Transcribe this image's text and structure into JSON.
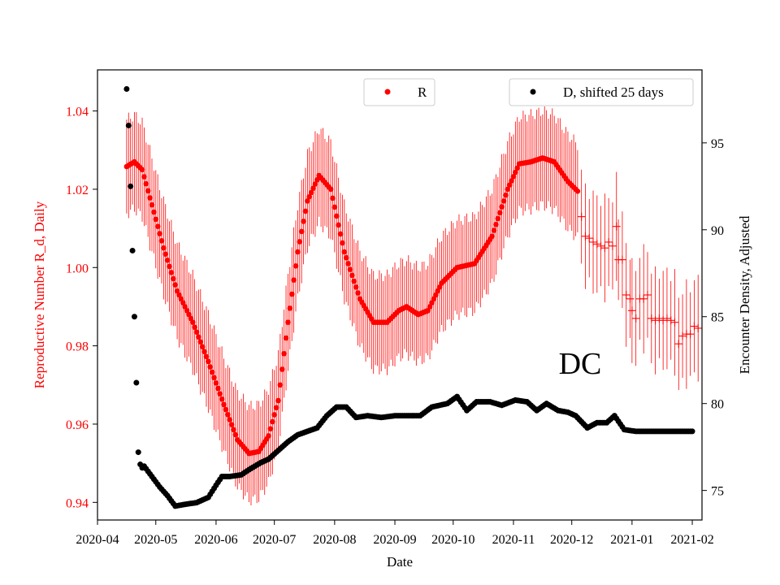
{
  "chart_data": {
    "type": "scatter",
    "title": "",
    "annotation": "DC",
    "xlabel": "Date",
    "ylabel_left": "Reproductive Number R_d, Daily",
    "ylabel_right": "Encounter Density, Adjusted",
    "xlim": [
      "2020-04-01",
      "2021-02-06"
    ],
    "ylim_left": [
      0.9355,
      1.0505
    ],
    "ylim_right": [
      73.3,
      99.2
    ],
    "x_ticks": [
      "2020-04",
      "2020-05",
      "2020-06",
      "2020-07",
      "2020-08",
      "2020-09",
      "2020-10",
      "2020-11",
      "2020-12",
      "2021-01",
      "2021-02"
    ],
    "y_ticks_left": [
      "0.94",
      "0.96",
      "0.98",
      "1.00",
      "1.02",
      "1.04"
    ],
    "y_ticks_right": [
      "75",
      "80",
      "85",
      "90",
      "95"
    ],
    "colors": {
      "R": "#ff0000",
      "D": "#000000",
      "left_axis": "#ff0000",
      "right_axis": "#000000"
    },
    "legend": [
      {
        "label": "R",
        "position": "top-center",
        "color": "#ff0000"
      },
      {
        "label": "D, shifted 25 days",
        "position": "top-right",
        "color": "#000000"
      }
    ],
    "series": [
      {
        "name": "R",
        "axis": "left",
        "style": "dots-with-errorbars",
        "color": "#ff0000",
        "error_halfwidth": 0.012,
        "keyframes": [
          [
            "2020-04-16",
            1.0258
          ],
          [
            "2020-04-20",
            1.027
          ],
          [
            "2020-04-24",
            1.025
          ],
          [
            "2020-04-29",
            1.016
          ],
          [
            "2020-05-05",
            1.005
          ],
          [
            "2020-05-12",
            0.994
          ],
          [
            "2020-05-20",
            0.986
          ],
          [
            "2020-05-28",
            0.976
          ],
          [
            "2020-06-05",
            0.965
          ],
          [
            "2020-06-12",
            0.956
          ],
          [
            "2020-06-18",
            0.9525
          ],
          [
            "2020-06-23",
            0.953
          ],
          [
            "2020-06-28",
            0.957
          ],
          [
            "2020-07-03",
            0.966
          ],
          [
            "2020-07-08",
            0.986
          ],
          [
            "2020-07-13",
            1.004
          ],
          [
            "2020-07-18",
            1.017
          ],
          [
            "2020-07-24",
            1.0235
          ],
          [
            "2020-07-30",
            1.02
          ],
          [
            "2020-08-06",
            1.004
          ],
          [
            "2020-08-14",
            0.992
          ],
          [
            "2020-08-21",
            0.986
          ],
          [
            "2020-08-28",
            0.986
          ],
          [
            "2020-09-03",
            0.989
          ],
          [
            "2020-09-07",
            0.99
          ],
          [
            "2020-09-13",
            0.988
          ],
          [
            "2020-09-18",
            0.989
          ],
          [
            "2020-09-25",
            0.996
          ],
          [
            "2020-10-03",
            1.0
          ],
          [
            "2020-10-12",
            1.001
          ],
          [
            "2020-10-21",
            1.008
          ],
          [
            "2020-10-29",
            1.02
          ],
          [
            "2020-11-04",
            1.0265
          ],
          [
            "2020-11-10",
            1.027
          ],
          [
            "2020-11-16",
            1.028
          ],
          [
            "2020-11-22",
            1.027
          ],
          [
            "2020-11-29",
            1.022
          ],
          [
            "2020-12-04",
            1.0195
          ]
        ]
      },
      {
        "name": "R (crosses)",
        "axis": "left",
        "style": "plus-markers-with-errorbars",
        "color": "#ff0000",
        "points": [
          [
            "2020-12-06",
            1.013
          ],
          [
            "2020-12-08",
            1.008
          ],
          [
            "2020-12-10",
            1.0075
          ],
          [
            "2020-12-12",
            1.0065
          ],
          [
            "2020-12-14",
            1.006
          ],
          [
            "2020-12-16",
            1.0055
          ],
          [
            "2020-12-18",
            1.005
          ],
          [
            "2020-12-20",
            1.0065
          ],
          [
            "2020-12-22",
            1.0055
          ],
          [
            "2020-12-24",
            1.0105
          ],
          [
            "2020-12-25",
            1.002
          ],
          [
            "2020-12-27",
            1.002
          ],
          [
            "2020-12-29",
            0.993
          ],
          [
            "2020-12-31",
            0.992
          ],
          [
            "2021-01-01",
            0.989
          ],
          [
            "2021-01-03",
            0.987
          ],
          [
            "2021-01-05",
            0.992
          ],
          [
            "2021-01-07",
            0.992
          ],
          [
            "2021-01-09",
            0.993
          ],
          [
            "2021-01-11",
            0.987
          ],
          [
            "2021-01-13",
            0.9865
          ],
          [
            "2021-01-15",
            0.987
          ],
          [
            "2021-01-17",
            0.9865
          ],
          [
            "2021-01-19",
            0.987
          ],
          [
            "2021-01-21",
            0.9865
          ],
          [
            "2021-01-23",
            0.986
          ],
          [
            "2021-01-25",
            0.9805
          ],
          [
            "2021-01-27",
            0.9825
          ],
          [
            "2021-01-29",
            0.983
          ],
          [
            "2021-01-31",
            0.983
          ],
          [
            "2021-02-02",
            0.985
          ],
          [
            "2021-02-04",
            0.9845
          ]
        ]
      },
      {
        "name": "D, shifted 25 days",
        "axis": "right",
        "style": "dots",
        "color": "#000000",
        "head_points": [
          [
            "2020-04-16",
            98.1
          ],
          [
            "2020-04-17",
            96.0
          ],
          [
            "2020-04-18",
            92.5
          ],
          [
            "2020-04-19",
            88.8
          ],
          [
            "2020-04-20",
            85.0
          ],
          [
            "2020-04-21",
            81.2
          ],
          [
            "2020-04-22",
            77.2
          ],
          [
            "2020-04-23",
            76.5
          ],
          [
            "2020-04-24",
            76.3
          ]
        ],
        "keyframes": [
          [
            "2020-04-25",
            76.4
          ],
          [
            "2020-04-29",
            75.8
          ],
          [
            "2020-05-03",
            75.2
          ],
          [
            "2020-05-07",
            74.7
          ],
          [
            "2020-05-11",
            74.1
          ],
          [
            "2020-05-16",
            74.2
          ],
          [
            "2020-05-22",
            74.3
          ],
          [
            "2020-05-28",
            74.6
          ],
          [
            "2020-06-01",
            75.3
          ],
          [
            "2020-06-04",
            75.8
          ],
          [
            "2020-06-08",
            75.8
          ],
          [
            "2020-06-14",
            75.9
          ],
          [
            "2020-06-18",
            76.2
          ],
          [
            "2020-06-24",
            76.6
          ],
          [
            "2020-06-28",
            76.8
          ],
          [
            "2020-07-03",
            77.3
          ],
          [
            "2020-07-08",
            77.8
          ],
          [
            "2020-07-13",
            78.2
          ],
          [
            "2020-07-18",
            78.4
          ],
          [
            "2020-07-23",
            78.6
          ],
          [
            "2020-07-28",
            79.3
          ],
          [
            "2020-08-02",
            79.8
          ],
          [
            "2020-08-07",
            79.8
          ],
          [
            "2020-08-12",
            79.2
          ],
          [
            "2020-08-18",
            79.3
          ],
          [
            "2020-08-25",
            79.2
          ],
          [
            "2020-09-01",
            79.3
          ],
          [
            "2020-09-08",
            79.3
          ],
          [
            "2020-09-14",
            79.3
          ],
          [
            "2020-09-20",
            79.8
          ],
          [
            "2020-09-28",
            80.0
          ],
          [
            "2020-10-03",
            80.4
          ],
          [
            "2020-10-08",
            79.6
          ],
          [
            "2020-10-13",
            80.1
          ],
          [
            "2020-10-20",
            80.1
          ],
          [
            "2020-10-26",
            79.9
          ],
          [
            "2020-11-02",
            80.2
          ],
          [
            "2020-11-08",
            80.1
          ],
          [
            "2020-11-13",
            79.6
          ],
          [
            "2020-11-18",
            80.0
          ],
          [
            "2020-11-24",
            79.6
          ],
          [
            "2020-11-29",
            79.5
          ],
          [
            "2020-12-03",
            79.3
          ],
          [
            "2020-12-09",
            78.6
          ],
          [
            "2020-12-14",
            78.9
          ],
          [
            "2020-12-19",
            78.9
          ],
          [
            "2020-12-23",
            79.3
          ],
          [
            "2020-12-28",
            78.5
          ],
          [
            "2021-01-03",
            78.4
          ],
          [
            "2021-01-15",
            78.4
          ],
          [
            "2021-02-01",
            78.4
          ]
        ]
      }
    ]
  }
}
